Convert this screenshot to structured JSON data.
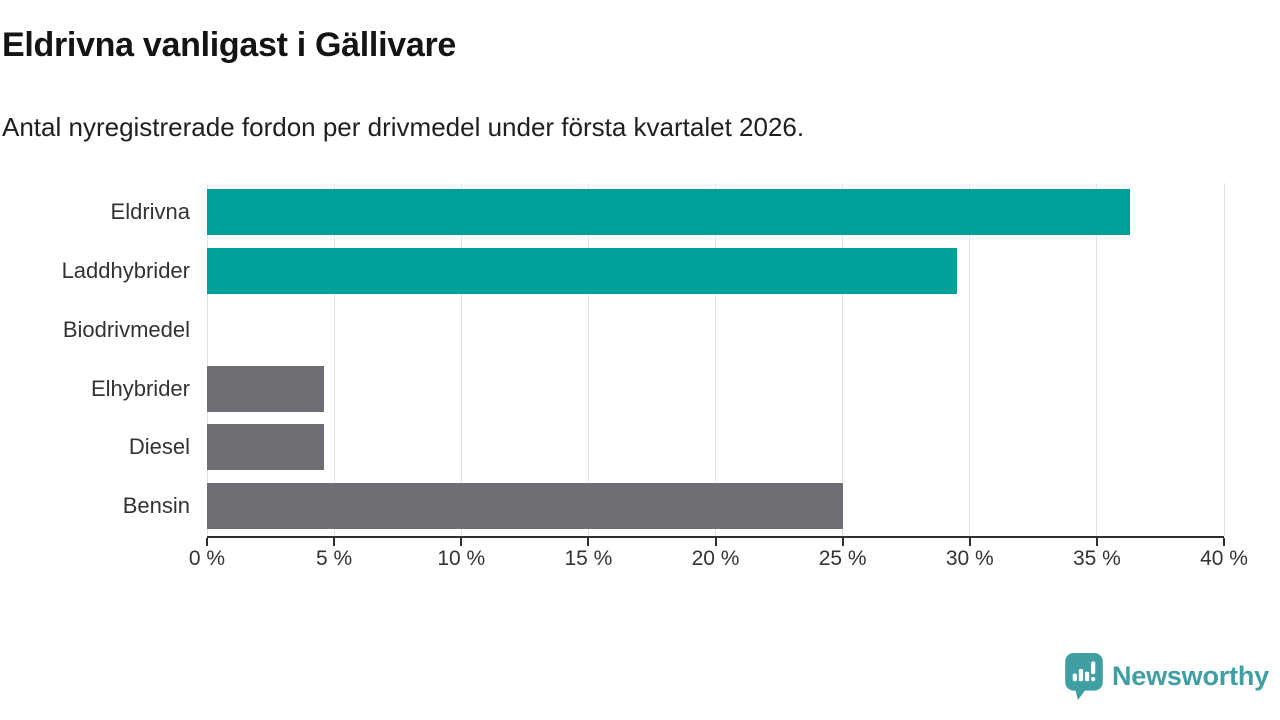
{
  "header": {
    "title": "Eldrivna vanligast i Gällivare",
    "subtitle": "Antal nyregistrerade fordon per drivmedel under första kvartalet 2026."
  },
  "chart_data": {
    "type": "bar",
    "orientation": "horizontal",
    "title": "Eldrivna vanligast i Gällivare",
    "subtitle": "Antal nyregistrerade fordon per drivmedel under första kvartalet 2026.",
    "categories": [
      "Eldrivna",
      "Laddhybrider",
      "Biodrivmedel",
      "Elhybrider",
      "Diesel",
      "Bensin"
    ],
    "values": [
      36.3,
      29.5,
      0,
      4.6,
      4.6,
      25.0
    ],
    "unit": "%",
    "bar_colors": [
      "#00a09a",
      "#00a09a",
      "#6e6d74",
      "#6e6d74",
      "#6e6d74",
      "#6e6d74"
    ],
    "xlim": [
      0,
      40
    ],
    "x_ticks": [
      0,
      5,
      10,
      15,
      20,
      25,
      30,
      35,
      40
    ],
    "x_tick_labels": [
      "0 %",
      "5 %",
      "10 %",
      "15 %",
      "20 %",
      "25 %",
      "30 %",
      "35 %",
      "40 %"
    ],
    "grid": true,
    "legend": false,
    "xlabel": "",
    "ylabel": ""
  },
  "footer": {
    "logo_text": "Newsworthy",
    "brand_color": "#3f9fa2"
  }
}
